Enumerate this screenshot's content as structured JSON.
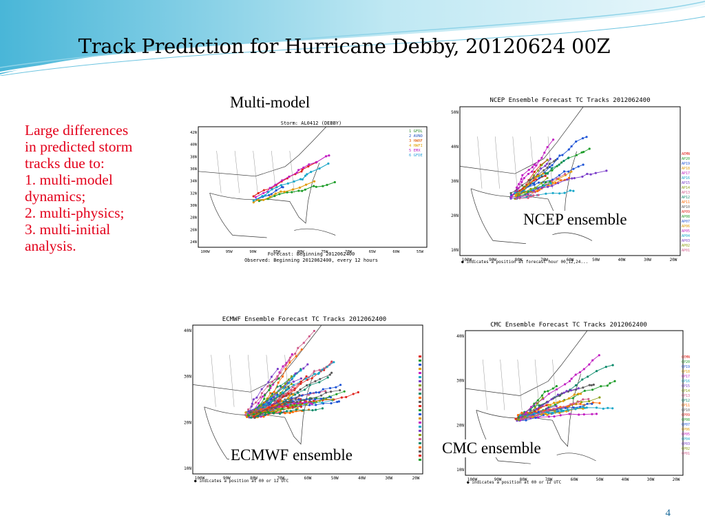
{
  "slide": {
    "title": "Track Prediction for Hurricane Debby, 20120624 00Z",
    "page_number": "4",
    "accent_color": "#33aacc"
  },
  "bullets": [
    "Large differences",
    "in predicted storm",
    "tracks due to:",
    "1. multi-model",
    "dynamics;",
    "2. multi-physics;",
    "3. multi-initial",
    "analysis."
  ],
  "bullet_color": "#e3001b",
  "captions": {
    "multi_model": "Multi-model",
    "ncep": "NCEP ensemble",
    "ecmwf": "ECMWF ensemble",
    "cmc": "CMC ensemble"
  },
  "panels": {
    "multi_model": {
      "header": "Storm: AL0412 (DEBBY)",
      "footer1": "Forecast: Beginning 2012062400",
      "footer2": "Observed: Beginning 2012062400, every 12 hours",
      "legend": [
        {
          "num": "1",
          "label": "GFDL",
          "color": "#2e8b2e"
        },
        {
          "num": "2",
          "label": "AVNO",
          "color": "#1f4fbf"
        },
        {
          "num": "3",
          "label": "HWRF",
          "color": "#e05a00"
        },
        {
          "num": "4",
          "label": "HWFI",
          "color": "#e0a000"
        },
        {
          "num": "5",
          "label": "EMX",
          "color": "#c020c0"
        },
        {
          "num": "6",
          "label": "GFDE",
          "color": "#2aa0d8"
        }
      ],
      "lat_labels": [
        "42N",
        "40N",
        "38N",
        "36N",
        "34N",
        "32N",
        "30N",
        "28N",
        "26N",
        "24N"
      ],
      "lon_labels": [
        "100W",
        "95W",
        "90W",
        "85W",
        "80W",
        "75W",
        "70W",
        "65W",
        "60W",
        "55W"
      ]
    },
    "ncep": {
      "header": "NCEP Ensemble Forecast TC Tracks 2012062400",
      "footnote": "● indicates a position at forecast hour 00,12,24...",
      "lat_labels": [
        "50N",
        "40N",
        "30N",
        "20N",
        "10N"
      ],
      "lon_labels": [
        "100W",
        "90W",
        "80W",
        "70W",
        "60W",
        "50W",
        "40W",
        "30W",
        "20W"
      ],
      "legend": [
        "AEMN",
        "AP20",
        "AP19",
        "AP18",
        "AP17",
        "AP16",
        "AP15",
        "AP14",
        "AP13",
        "AP12",
        "AP11",
        "AP10",
        "AP09",
        "AP08",
        "AP07",
        "AP06",
        "AP05",
        "AP04",
        "AP03",
        "AP02",
        "AP01"
      ]
    },
    "ecmwf": {
      "header": "ECMWF Ensemble Forecast TC Tracks 2012062400",
      "footnote": "● indicates a position at 00 or 12 UTC",
      "lat_labels": [
        "40N",
        "30N",
        "20N",
        "10N"
      ],
      "lon_labels": [
        "100W",
        "90W",
        "80W",
        "70W",
        "60W",
        "50W",
        "40W",
        "30W",
        "20W"
      ]
    },
    "cmc": {
      "header": "CMC Ensemble Forecast TC Tracks 2012062400",
      "footnote": "● indicates a position at 00 or 12 UTC",
      "lat_labels": [
        "40N",
        "30N",
        "20N",
        "10N"
      ],
      "lon_labels": [
        "100W",
        "90W",
        "80W",
        "70W",
        "60W",
        "50W",
        "40W",
        "30W",
        "20W"
      ],
      "legend": [
        "CEMN",
        "CP20",
        "CP19",
        "CP18",
        "CP17",
        "CP16",
        "CP15",
        "CP14",
        "CP13",
        "CP12",
        "CP11",
        "CP10",
        "CP09",
        "CP08",
        "CP07",
        "CP06",
        "CP05",
        "CP04",
        "CP03",
        "CP02",
        "CP01"
      ]
    }
  },
  "track_palette": [
    "#e0261f",
    "#1f9d2a",
    "#1f55d6",
    "#e09a00",
    "#c21fc2",
    "#17a7c9",
    "#7a3dc9",
    "#8aa012",
    "#d05a8a",
    "#0a8a6a",
    "#ff6a00",
    "#5a5a5a"
  ]
}
